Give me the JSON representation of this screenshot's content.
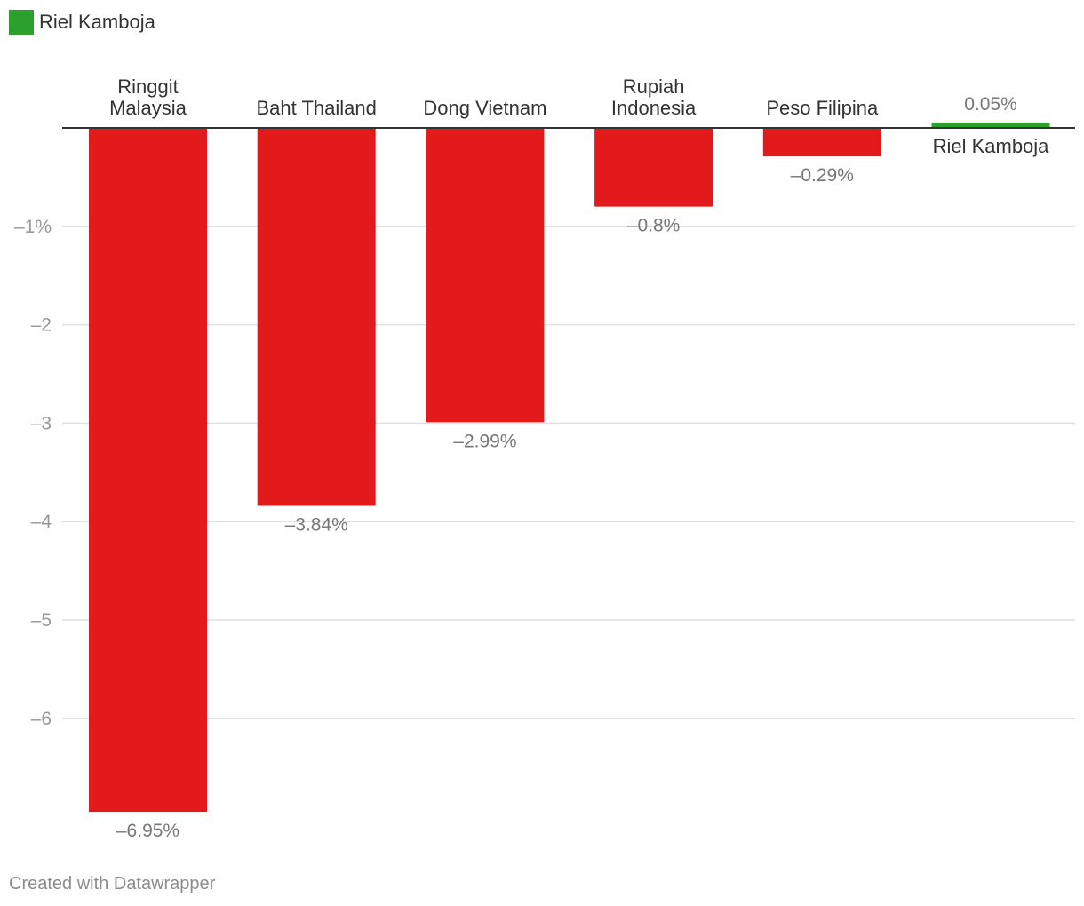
{
  "legend": {
    "label": "Riel Kamboja",
    "color": "#2ca02c"
  },
  "footer": {
    "credit": "Created with Datawrapper"
  },
  "colors": {
    "negative": "#e31a1c",
    "positive": "#2ca02c",
    "grid": "#e0e0e0",
    "axis": "#333333",
    "tick_label": "#999999",
    "value_label": "#777777",
    "category_label": "#333333"
  },
  "chart_data": {
    "type": "bar",
    "categories": [
      [
        "Ringgit",
        "Malaysia"
      ],
      [
        "Baht Thailand"
      ],
      [
        "Dong Vietnam"
      ],
      [
        "Rupiah",
        "Indonesia"
      ],
      [
        "Peso Filipina"
      ],
      [
        "Riel Kamboja"
      ]
    ],
    "values": [
      -6.95,
      -3.84,
      -2.99,
      -0.8,
      -0.29,
      0.05
    ],
    "value_labels": [
      "–6.95%",
      "–3.84%",
      "–2.99%",
      "–0.8%",
      "–0.29%",
      "0.05%"
    ],
    "y_ticks": [
      -1,
      -2,
      -3,
      -4,
      -5,
      -6
    ],
    "y_tick_labels": [
      "–1%",
      "–2",
      "–3",
      "–4",
      "–5",
      "–6"
    ],
    "ylim": [
      -6.95,
      0.05
    ],
    "title": "",
    "xlabel": "",
    "ylabel": ""
  }
}
